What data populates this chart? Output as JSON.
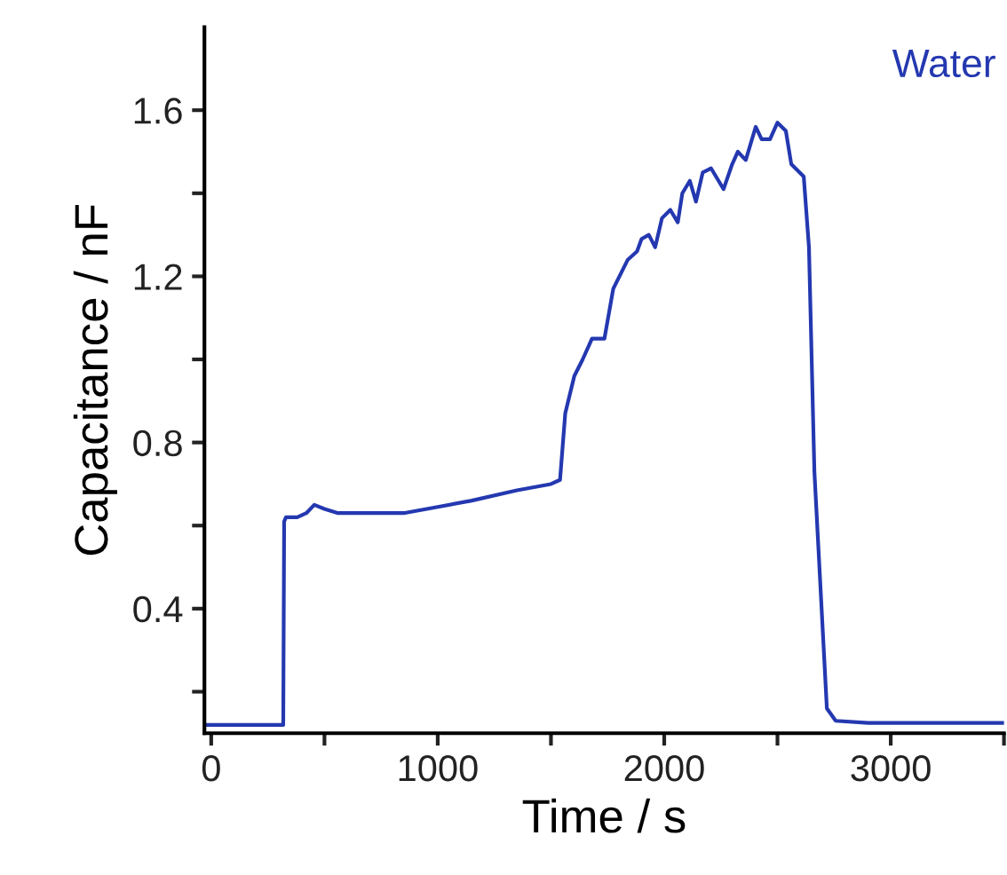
{
  "chart_data": {
    "type": "line",
    "xlabel": "Time / s",
    "ylabel": "Capacitance / nF",
    "x": [
      -30,
      100,
      200,
      300,
      318,
      322,
      330,
      380,
      420,
      455,
      500,
      560,
      700,
      850,
      1000,
      1150,
      1350,
      1500,
      1540,
      1563,
      1603,
      1640,
      1681,
      1736,
      1775,
      1839,
      1880,
      1900,
      1932,
      1960,
      1990,
      2027,
      2060,
      2080,
      2113,
      2140,
      2170,
      2207,
      2240,
      2262,
      2300,
      2325,
      2360,
      2404,
      2430,
      2467,
      2500,
      2537,
      2561,
      2616,
      2639,
      2663,
      2718,
      2757,
      2900,
      3200,
      3500
    ],
    "series": [
      {
        "name": "Water",
        "color": "#2438b0",
        "values": [
          0.12,
          0.12,
          0.12,
          0.12,
          0.12,
          0.61,
          0.62,
          0.62,
          0.63,
          0.65,
          0.64,
          0.63,
          0.63,
          0.63,
          0.645,
          0.66,
          0.685,
          0.7,
          0.71,
          0.87,
          0.96,
          1.0,
          1.05,
          1.05,
          1.17,
          1.24,
          1.26,
          1.29,
          1.3,
          1.27,
          1.34,
          1.36,
          1.33,
          1.4,
          1.43,
          1.38,
          1.45,
          1.46,
          1.43,
          1.41,
          1.47,
          1.5,
          1.48,
          1.56,
          1.53,
          1.53,
          1.57,
          1.55,
          1.47,
          1.44,
          1.27,
          0.73,
          0.16,
          0.13,
          0.125,
          0.125,
          0.125
        ]
      }
    ],
    "xlim": [
      -30,
      3500
    ],
    "ylim": [
      0.1,
      1.8
    ],
    "xticks": [
      0,
      {
        "value": 500,
        "label": null
      },
      1000,
      {
        "value": 1500,
        "label": null
      },
      2000,
      {
        "value": 2500,
        "label": null
      },
      3000,
      {
        "value": 3500,
        "label": null
      }
    ],
    "yticks": [
      {
        "value": 0.2,
        "label": null
      },
      0.4,
      {
        "value": 0.6,
        "label": null
      },
      0.8,
      {
        "value": 1.0,
        "label": null
      },
      1.2,
      {
        "value": 1.4,
        "label": null
      },
      1.6
    ],
    "grid": false,
    "legend": false,
    "marker": "none",
    "line_style": "solid"
  }
}
